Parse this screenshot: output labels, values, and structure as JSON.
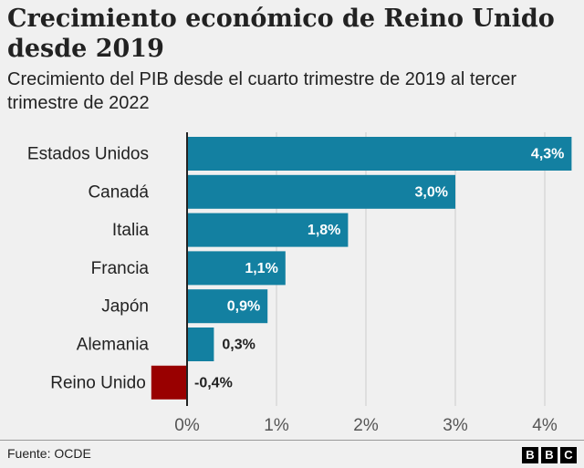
{
  "title": "Crecimiento económico de Reino Unido desde 2019",
  "subtitle": "Crecimiento del PIB desde el cuarto trimestre de 2019 al tercer trimestre de 2022",
  "source": "Fuente: OCDE",
  "logo": [
    "B",
    "B",
    "C"
  ],
  "colors": {
    "bar": "#1380a1",
    "negative": "#990000",
    "grid": "#cccccc",
    "axis": "#222222"
  },
  "chart_data": {
    "type": "bar",
    "orientation": "horizontal",
    "categories": [
      "Estados Unidos",
      "Canadá",
      "Italia",
      "Francia",
      "Japón",
      "Alemania",
      "Reino Unido"
    ],
    "values": [
      4.3,
      3.0,
      1.8,
      1.1,
      0.9,
      0.3,
      -0.4
    ],
    "value_labels": [
      "4,3%",
      "3,0%",
      "1,8%",
      "1,1%",
      "0,9%",
      "0,3%",
      "-0,4%"
    ],
    "xlim": [
      0,
      4
    ],
    "xticks": [
      0,
      1,
      2,
      3,
      4
    ],
    "xtick_labels": [
      "0%",
      "1%",
      "2%",
      "3%",
      "4%"
    ],
    "grid": true
  }
}
